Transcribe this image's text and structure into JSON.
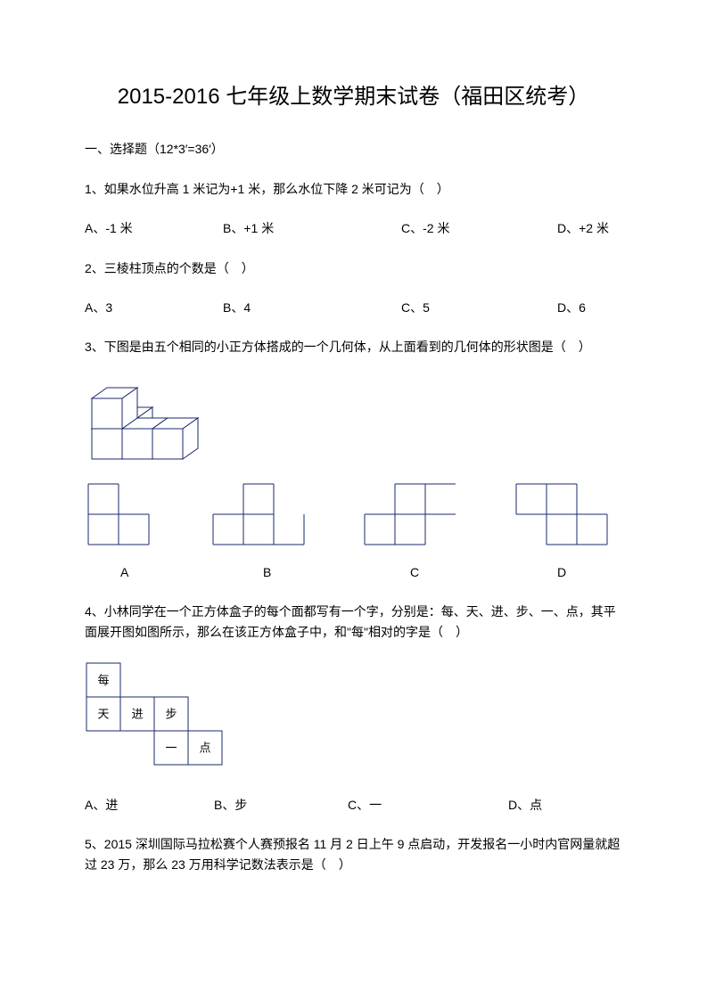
{
  "title": "2015-2016 七年级上数学期末试卷（福田区统考）",
  "section1": "一、选择题（12*3′=36′）",
  "q1": {
    "text": "1、如果水位升高 1 米记为+1 米，那么水位下降 2 米可记为（　）",
    "opts": {
      "a": "A、-1 米",
      "b": "B、+1 米",
      "c": "C、-2 米",
      "d": "D、+2 米"
    }
  },
  "q2": {
    "text": "2、三棱柱顶点的个数是（　）",
    "opts": {
      "a": "A、3",
      "b": "B、4",
      "c": "C、5",
      "d": "D、6"
    }
  },
  "q3": {
    "text": "3、下图是由五个相同的小正方体搭成的一个几何体，从上面看到的几何体的形状图是（　）",
    "labels": {
      "a": "A",
      "b": "B",
      "c": "C",
      "d": "D"
    },
    "figure3d": {
      "stroke": "#1a2a6c",
      "stroke_width": 1,
      "cube_edge": 34,
      "depth_dx": 17,
      "depth_dy": 12
    },
    "choice_figs": {
      "stroke": "#1a2a6c",
      "stroke_width": 1,
      "cell": 34,
      "a": {
        "cells": [
          [
            0,
            0
          ],
          [
            0,
            1
          ],
          [
            1,
            1
          ]
        ]
      },
      "b": {
        "cells": [
          [
            1,
            0
          ],
          [
            0,
            1
          ],
          [
            1,
            1
          ],
          [
            2,
            1
          ]
        ],
        "open_top_col": 2
      },
      "c": {
        "cells": [
          [
            1,
            0
          ],
          [
            2,
            0
          ],
          [
            0,
            1
          ],
          [
            1,
            1
          ]
        ],
        "open_right_on": [
          2,
          0
        ]
      },
      "d": {
        "cells": [
          [
            0,
            0
          ],
          [
            1,
            0
          ],
          [
            1,
            1
          ],
          [
            2,
            1
          ]
        ]
      }
    }
  },
  "q4": {
    "text": "4、小林同学在一个正方体盒子的每个面都写有一个字，分别是：每、天、进、步、一、点，其平面展开图如图所示，那么在该正方体盒子中，和\"每\"相对的字是（　）",
    "opts": {
      "a": "A、进",
      "b": "B、步",
      "c": "C、一",
      "d": "D、点"
    },
    "net": {
      "stroke": "#1a2a6c",
      "stroke_width": 1,
      "cell": 38,
      "faces": [
        {
          "col": 0,
          "row": 0,
          "char": "每"
        },
        {
          "col": 0,
          "row": 1,
          "char": "天"
        },
        {
          "col": 1,
          "row": 1,
          "char": "进"
        },
        {
          "col": 2,
          "row": 1,
          "char": "步"
        },
        {
          "col": 2,
          "row": 2,
          "char": "一"
        },
        {
          "col": 3,
          "row": 2,
          "char": "点"
        }
      ],
      "text_fontsize": 13
    }
  },
  "q5": {
    "text": "5、2015 深圳国际马拉松赛个人赛预报名 11 月 2 日上午 9 点启动，开发报名一小时内官网量就超过 23 万，那么 23 万用科学记数法表示是（　）"
  }
}
